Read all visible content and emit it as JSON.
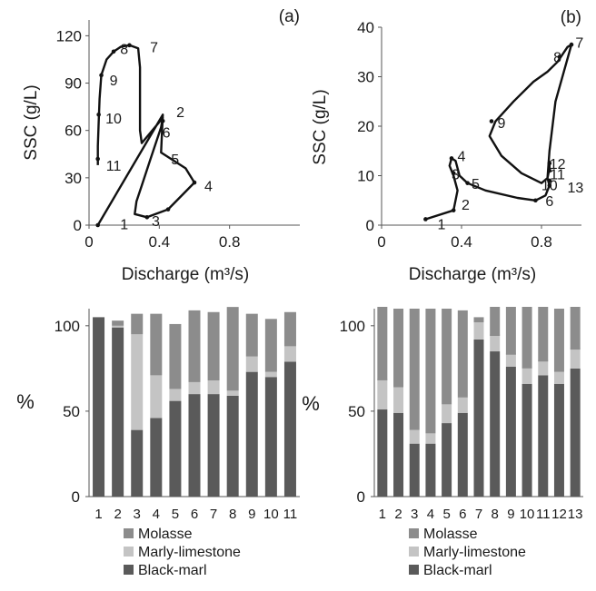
{
  "colors": {
    "line": "#111111",
    "axis": "#555555",
    "molasse": "#8c8c8c",
    "marly_limestone": "#c4c4c4",
    "black_marl": "#5a5a5a"
  },
  "chart_data": [
    {
      "id": "a",
      "type": "line",
      "panel_label": "(a)",
      "xlabel": "Discharge (m³/s)",
      "ylabel": "SSC (g/L)",
      "xlim": [
        0,
        1.2
      ],
      "ylim": [
        0,
        130
      ],
      "xticks": [
        0,
        0.4,
        0.8
      ],
      "xtick_labels": [
        "0",
        "0.4",
        "0.8"
      ],
      "yticks": [
        0,
        30,
        60,
        90,
        120
      ],
      "ytick_labels": [
        "0",
        "30",
        "60",
        "90",
        "120"
      ],
      "series": [
        {
          "x": [
            0.05,
            0.42,
            0.41,
            0.55,
            0.6,
            0.45,
            0.33,
            0.26,
            0.27,
            0.3,
            0.35,
            0.41,
            0.42,
            0.3,
            0.29,
            0.29,
            0.28,
            0.23,
            0.18,
            0.14,
            0.1,
            0.07,
            0.06,
            0.055,
            0.05,
            0.05,
            0.05
          ],
          "y": [
            0,
            70,
            46,
            36,
            27,
            10,
            5,
            7,
            15,
            25,
            42,
            62,
            68,
            52,
            60,
            100,
            112,
            114,
            113,
            110,
            105,
            95,
            80,
            65,
            50,
            42,
            38
          ]
        }
      ],
      "markers": [
        {
          "x": 0.05,
          "y": 0
        },
        {
          "x": 0.42,
          "y": 66
        },
        {
          "x": 0.6,
          "y": 27
        },
        {
          "x": 0.45,
          "y": 10
        },
        {
          "x": 0.33,
          "y": 5
        },
        {
          "x": 0.23,
          "y": 114
        },
        {
          "x": 0.14,
          "y": 110
        },
        {
          "x": 0.07,
          "y": 95
        },
        {
          "x": 0.055,
          "y": 70
        },
        {
          "x": 0.05,
          "y": 42
        }
      ],
      "annotations": [
        {
          "text": "1",
          "x": 0.2,
          "y": 1
        },
        {
          "text": "2",
          "x": 0.52,
          "y": 72
        },
        {
          "text": "3",
          "x": 0.38,
          "y": 3
        },
        {
          "text": "4",
          "x": 0.68,
          "y": 25
        },
        {
          "text": "5",
          "x": 0.49,
          "y": 42
        },
        {
          "text": "6",
          "x": 0.44,
          "y": 59
        },
        {
          "text": "7",
          "x": 0.37,
          "y": 113
        },
        {
          "text": "8",
          "x": 0.2,
          "y": 112
        },
        {
          "text": "9",
          "x": 0.14,
          "y": 92
        },
        {
          "text": "10",
          "x": 0.14,
          "y": 68
        },
        {
          "text": "11",
          "x": 0.14,
          "y": 38
        }
      ]
    },
    {
      "id": "b",
      "type": "line",
      "panel_label": "(b)",
      "xlabel": "Discharge (m³/s)",
      "ylabel": "SSC (g/L)",
      "xlim": [
        0,
        1.0
      ],
      "ylim": [
        0,
        40
      ],
      "xticks": [
        0,
        0.4,
        0.8
      ],
      "xtick_labels": [
        "0",
        "0.4",
        "0.8"
      ],
      "yticks": [
        0,
        10,
        20,
        30,
        40
      ],
      "ytick_labels": [
        "0",
        "10",
        "20",
        "30",
        "40"
      ],
      "series": [
        {
          "x": [
            0.22,
            0.36,
            0.38,
            0.36,
            0.34,
            0.35,
            0.37,
            0.39,
            0.43,
            0.52,
            0.68,
            0.77,
            0.82,
            0.84,
            0.83,
            0.84,
            0.87,
            0.95,
            0.93,
            0.88,
            0.83,
            0.76,
            0.66,
            0.57,
            0.54,
            0.6,
            0.7,
            0.8,
            0.83,
            0.84,
            0.84
          ],
          "y": [
            1.2,
            3,
            7,
            10,
            12,
            13.5,
            13,
            10,
            8.5,
            7,
            5.5,
            5,
            6,
            8,
            9.5,
            15,
            25,
            36.5,
            36,
            33,
            31,
            29,
            25,
            21,
            18,
            14,
            10.5,
            8.5,
            9.5,
            11.5,
            13
          ]
        }
      ],
      "markers": [
        {
          "x": 0.22,
          "y": 1.2
        },
        {
          "x": 0.36,
          "y": 3
        },
        {
          "x": 0.35,
          "y": 13.5
        },
        {
          "x": 0.36,
          "y": 10.5
        },
        {
          "x": 0.43,
          "y": 8.5
        },
        {
          "x": 0.77,
          "y": 5
        },
        {
          "x": 0.95,
          "y": 36.5
        },
        {
          "x": 0.89,
          "y": 34
        },
        {
          "x": 0.55,
          "y": 21
        },
        {
          "x": 0.84,
          "y": 11
        },
        {
          "x": 0.84,
          "y": 9
        },
        {
          "x": 0.84,
          "y": 12.5
        },
        {
          "x": 0.84,
          "y": 8
        }
      ],
      "annotations": [
        {
          "text": "1",
          "x": 0.3,
          "y": 0.3
        },
        {
          "text": "2",
          "x": 0.42,
          "y": 4.2
        },
        {
          "text": "3",
          "x": 0.37,
          "y": 10.4
        },
        {
          "text": "4",
          "x": 0.4,
          "y": 14
        },
        {
          "text": "5",
          "x": 0.47,
          "y": 8.4
        },
        {
          "text": "6",
          "x": 0.84,
          "y": 5
        },
        {
          "text": "7",
          "x": 0.99,
          "y": 37
        },
        {
          "text": "8",
          "x": 0.88,
          "y": 34
        },
        {
          "text": "9",
          "x": 0.6,
          "y": 20.7
        },
        {
          "text": "10",
          "x": 0.84,
          "y": 8.2
        },
        {
          "text": "11",
          "x": 0.88,
          "y": 10.4
        },
        {
          "text": "12",
          "x": 0.88,
          "y": 12.5
        },
        {
          "text": "13",
          "x": 0.97,
          "y": 7.7
        }
      ]
    },
    {
      "id": "c",
      "type": "bar",
      "stacked": true,
      "ylabel": "%",
      "ylim": [
        0,
        110
      ],
      "yticks": [
        0,
        50,
        100
      ],
      "ytick_labels": [
        "0",
        "50",
        "100"
      ],
      "categories": [
        "1",
        "2",
        "3",
        "4",
        "5",
        "6",
        "7",
        "8",
        "9",
        "10",
        "11"
      ],
      "series": [
        {
          "name": "Black-marl",
          "values": [
            105,
            99,
            39,
            46,
            56,
            60,
            60,
            59,
            73,
            70,
            79
          ]
        },
        {
          "name": "Marly-limestone",
          "values": [
            0,
            1,
            56,
            25,
            7,
            7,
            8,
            3,
            9,
            3,
            9
          ]
        },
        {
          "name": "Molasse",
          "values": [
            0,
            3,
            12,
            36,
            38,
            42,
            40,
            49,
            25,
            31,
            20
          ]
        }
      ],
      "legend": {
        "position": "bottom",
        "entries": [
          "Molasse",
          "Marly-limestone",
          "Black-marl"
        ]
      }
    },
    {
      "id": "d",
      "type": "bar",
      "stacked": true,
      "ylabel": "%",
      "ylim": [
        0,
        110
      ],
      "yticks": [
        0,
        50,
        100
      ],
      "ytick_labels": [
        "0",
        "50",
        "100"
      ],
      "categories": [
        "1",
        "2",
        "3",
        "4",
        "5",
        "6",
        "7",
        "8",
        "9",
        "10",
        "11",
        "12",
        "13"
      ],
      "series": [
        {
          "name": "Black-marl",
          "values": [
            51,
            49,
            31,
            31,
            43,
            49,
            92,
            85,
            76,
            66,
            71,
            66,
            75
          ]
        },
        {
          "name": "Marly-limestone",
          "values": [
            18,
            15,
            8,
            6,
            11,
            9,
            10,
            10,
            8,
            10,
            9,
            7,
            12
          ]
        },
        {
          "name": "Molasse",
          "values": [
            43,
            46,
            71,
            73,
            56,
            51,
            3,
            17,
            28,
            36,
            32,
            37,
            25
          ]
        }
      ],
      "legend": {
        "position": "bottom",
        "entries": [
          "Molasse",
          "Marly-limestone",
          "Black-marl"
        ]
      }
    }
  ]
}
